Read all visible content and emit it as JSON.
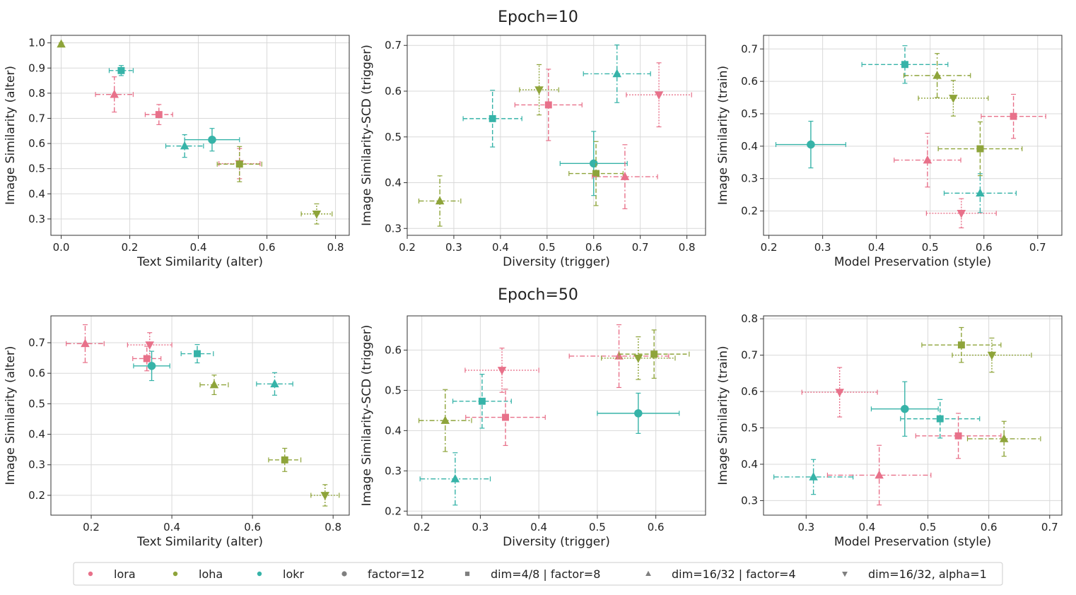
{
  "colors": {
    "lora": "#e8718a",
    "loha": "#8ea43a",
    "lokr": "#36b3a8",
    "neutral": "#7f7f7f"
  },
  "row_titles": [
    "Epoch=10",
    "Epoch=50"
  ],
  "legend": [
    {
      "label": "lora",
      "kind": "color",
      "key": "lora"
    },
    {
      "label": "loha",
      "kind": "color",
      "key": "loha"
    },
    {
      "label": "lokr",
      "kind": "color",
      "key": "lokr"
    },
    {
      "label": "factor=12",
      "kind": "marker",
      "marker": "circle"
    },
    {
      "label": "dim=4/8 | factor=8",
      "kind": "marker",
      "marker": "square"
    },
    {
      "label": "dim=16/32 | factor=4",
      "kind": "marker",
      "marker": "triangle-up"
    },
    {
      "label": "dim=16/32, alpha=1",
      "kind": "marker",
      "marker": "triangle-down"
    }
  ],
  "chart_data": [
    {
      "type": "scatter",
      "row": 0,
      "col": 0,
      "xlabel": "Text Similarity (alter)",
      "ylabel": "Image Similarity (alter)",
      "xlim": [
        -0.03,
        0.84
      ],
      "ylim": [
        0.235,
        1.03
      ],
      "xticks": [
        0.0,
        0.2,
        0.4,
        0.6,
        0.8
      ],
      "yticks": [
        0.3,
        0.4,
        0.5,
        0.6,
        0.7,
        0.8,
        0.9,
        1.0
      ],
      "points": [
        {
          "algo": "loha",
          "marker": "triangle-up",
          "x": 0.0,
          "y": 0.995,
          "xerr": 0.003,
          "yerr": 0.005
        },
        {
          "algo": "lokr",
          "marker": "square",
          "x": 0.175,
          "y": 0.89,
          "xerr": 0.035,
          "yerr": 0.02
        },
        {
          "algo": "lora",
          "marker": "triangle-up",
          "x": 0.155,
          "y": 0.795,
          "xerr": 0.055,
          "yerr": 0.07
        },
        {
          "algo": "lora",
          "marker": "square",
          "x": 0.285,
          "y": 0.715,
          "xerr": 0.04,
          "yerr": 0.04
        },
        {
          "algo": "lokr",
          "marker": "circle",
          "x": 0.44,
          "y": 0.615,
          "xerr": 0.08,
          "yerr": 0.045
        },
        {
          "algo": "lokr",
          "marker": "triangle-up",
          "x": 0.36,
          "y": 0.59,
          "xerr": 0.055,
          "yerr": 0.045
        },
        {
          "algo": "lora",
          "marker": "triangle-down",
          "x": 0.52,
          "y": 0.52,
          "xerr": 0.06,
          "yerr": 0.06
        },
        {
          "algo": "loha",
          "marker": "square",
          "x": 0.52,
          "y": 0.518,
          "xerr": 0.065,
          "yerr": 0.07
        },
        {
          "algo": "loha",
          "marker": "triangle-down",
          "x": 0.745,
          "y": 0.32,
          "xerr": 0.045,
          "yerr": 0.04
        }
      ]
    },
    {
      "type": "scatter",
      "row": 0,
      "col": 1,
      "xlabel": "Diversity (trigger)",
      "ylabel": "Image Similarity-SCD (trigger)",
      "xlim": [
        0.2,
        0.84
      ],
      "ylim": [
        0.285,
        0.722
      ],
      "xticks": [
        0.2,
        0.3,
        0.4,
        0.5,
        0.6,
        0.7,
        0.8
      ],
      "yticks": [
        0.3,
        0.4,
        0.5,
        0.6,
        0.7
      ],
      "points": [
        {
          "algo": "lokr",
          "marker": "triangle-up",
          "x": 0.65,
          "y": 0.638,
          "xerr": 0.072,
          "yerr": 0.063
        },
        {
          "algo": "loha",
          "marker": "triangle-down",
          "x": 0.483,
          "y": 0.603,
          "xerr": 0.042,
          "yerr": 0.055
        },
        {
          "algo": "lora",
          "marker": "triangle-down",
          "x": 0.74,
          "y": 0.592,
          "xerr": 0.07,
          "yerr": 0.07
        },
        {
          "algo": "lora",
          "marker": "square",
          "x": 0.503,
          "y": 0.57,
          "xerr": 0.072,
          "yerr": 0.078
        },
        {
          "algo": "lokr",
          "marker": "square",
          "x": 0.383,
          "y": 0.54,
          "xerr": 0.063,
          "yerr": 0.062
        },
        {
          "algo": "lokr",
          "marker": "circle",
          "x": 0.6,
          "y": 0.442,
          "xerr": 0.072,
          "yerr": 0.07
        },
        {
          "algo": "loha",
          "marker": "square",
          "x": 0.605,
          "y": 0.42,
          "xerr": 0.058,
          "yerr": 0.07
        },
        {
          "algo": "lora",
          "marker": "triangle-up",
          "x": 0.667,
          "y": 0.413,
          "xerr": 0.07,
          "yerr": 0.07
        },
        {
          "algo": "loha",
          "marker": "triangle-up",
          "x": 0.27,
          "y": 0.36,
          "xerr": 0.045,
          "yerr": 0.055
        }
      ]
    },
    {
      "type": "scatter",
      "row": 0,
      "col": 2,
      "xlabel": "Model Preservation (style)",
      "ylabel": "Image Similarity (train)",
      "xlim": [
        0.19,
        0.745
      ],
      "ylim": [
        0.125,
        0.742
      ],
      "xticks": [
        0.2,
        0.3,
        0.4,
        0.5,
        0.6,
        0.7
      ],
      "yticks": [
        0.2,
        0.3,
        0.4,
        0.5,
        0.6,
        0.7
      ],
      "points": [
        {
          "algo": "lokr",
          "marker": "square",
          "x": 0.453,
          "y": 0.652,
          "xerr": 0.08,
          "yerr": 0.058
        },
        {
          "algo": "loha",
          "marker": "triangle-up",
          "x": 0.513,
          "y": 0.618,
          "xerr": 0.062,
          "yerr": 0.068
        },
        {
          "algo": "loha",
          "marker": "triangle-down",
          "x": 0.543,
          "y": 0.548,
          "xerr": 0.065,
          "yerr": 0.055
        },
        {
          "algo": "lora",
          "marker": "square",
          "x": 0.655,
          "y": 0.492,
          "xerr": 0.06,
          "yerr": 0.068
        },
        {
          "algo": "lokr",
          "marker": "circle",
          "x": 0.278,
          "y": 0.405,
          "xerr": 0.065,
          "yerr": 0.072
        },
        {
          "algo": "loha",
          "marker": "square",
          "x": 0.593,
          "y": 0.392,
          "xerr": 0.078,
          "yerr": 0.083
        },
        {
          "algo": "lora",
          "marker": "triangle-up",
          "x": 0.495,
          "y": 0.357,
          "xerr": 0.062,
          "yerr": 0.083
        },
        {
          "algo": "lokr",
          "marker": "triangle-up",
          "x": 0.593,
          "y": 0.255,
          "xerr": 0.067,
          "yerr": 0.06
        },
        {
          "algo": "lora",
          "marker": "triangle-down",
          "x": 0.558,
          "y": 0.193,
          "xerr": 0.065,
          "yerr": 0.045
        }
      ]
    },
    {
      "type": "scatter",
      "row": 1,
      "col": 0,
      "xlabel": "Text Similarity (alter)",
      "ylabel": "Image Similarity (alter)",
      "xlim": [
        0.1,
        0.84
      ],
      "ylim": [
        0.135,
        0.788
      ],
      "xticks": [
        0.2,
        0.4,
        0.6,
        0.8
      ],
      "yticks": [
        0.2,
        0.3,
        0.4,
        0.5,
        0.6,
        0.7
      ],
      "points": [
        {
          "algo": "lora",
          "marker": "triangle-up",
          "x": 0.185,
          "y": 0.697,
          "xerr": 0.047,
          "yerr": 0.062
        },
        {
          "algo": "lora",
          "marker": "triangle-down",
          "x": 0.345,
          "y": 0.693,
          "xerr": 0.055,
          "yerr": 0.04
        },
        {
          "algo": "lora",
          "marker": "square",
          "x": 0.338,
          "y": 0.648,
          "xerr": 0.035,
          "yerr": 0.04
        },
        {
          "algo": "lokr",
          "marker": "square",
          "x": 0.463,
          "y": 0.664,
          "xerr": 0.04,
          "yerr": 0.03
        },
        {
          "algo": "lokr",
          "marker": "circle",
          "x": 0.35,
          "y": 0.624,
          "xerr": 0.045,
          "yerr": 0.048
        },
        {
          "algo": "loha",
          "marker": "triangle-up",
          "x": 0.505,
          "y": 0.562,
          "xerr": 0.035,
          "yerr": 0.032
        },
        {
          "algo": "lokr",
          "marker": "triangle-up",
          "x": 0.655,
          "y": 0.565,
          "xerr": 0.045,
          "yerr": 0.037
        },
        {
          "algo": "loha",
          "marker": "square",
          "x": 0.68,
          "y": 0.316,
          "xerr": 0.04,
          "yerr": 0.038
        },
        {
          "algo": "loha",
          "marker": "triangle-down",
          "x": 0.78,
          "y": 0.2,
          "xerr": 0.035,
          "yerr": 0.035
        }
      ]
    },
    {
      "type": "scatter",
      "row": 1,
      "col": 1,
      "xlabel": "Diversity (trigger)",
      "ylabel": "Image Similarity-SCD (trigger)",
      "xlim": [
        0.175,
        0.685
      ],
      "ylim": [
        0.19,
        0.685
      ],
      "xticks": [
        0.2,
        0.3,
        0.4,
        0.5,
        0.6
      ],
      "yticks": [
        0.2,
        0.3,
        0.4,
        0.5,
        0.6
      ],
      "points": [
        {
          "algo": "lora",
          "marker": "triangle-up",
          "x": 0.537,
          "y": 0.585,
          "xerr": 0.085,
          "yerr": 0.078
        },
        {
          "algo": "loha",
          "marker": "triangle-down",
          "x": 0.57,
          "y": 0.58,
          "xerr": 0.063,
          "yerr": 0.053
        },
        {
          "algo": "loha",
          "marker": "square",
          "x": 0.597,
          "y": 0.59,
          "xerr": 0.06,
          "yerr": 0.06
        },
        {
          "algo": "lora",
          "marker": "triangle-down",
          "x": 0.337,
          "y": 0.55,
          "xerr": 0.063,
          "yerr": 0.055
        },
        {
          "algo": "lokr",
          "marker": "circle",
          "x": 0.57,
          "y": 0.443,
          "xerr": 0.07,
          "yerr": 0.05
        },
        {
          "algo": "lokr",
          "marker": "square",
          "x": 0.303,
          "y": 0.473,
          "xerr": 0.05,
          "yerr": 0.067
        },
        {
          "algo": "lora",
          "marker": "square",
          "x": 0.343,
          "y": 0.433,
          "xerr": 0.068,
          "yerr": 0.07
        },
        {
          "algo": "loha",
          "marker": "triangle-up",
          "x": 0.24,
          "y": 0.425,
          "xerr": 0.045,
          "yerr": 0.077
        },
        {
          "algo": "lokr",
          "marker": "triangle-up",
          "x": 0.257,
          "y": 0.28,
          "xerr": 0.06,
          "yerr": 0.065
        }
      ]
    },
    {
      "type": "scatter",
      "row": 1,
      "col": 2,
      "xlabel": "Model Preservation (style)",
      "ylabel": "Image Similarity (train)",
      "xlim": [
        0.23,
        0.72
      ],
      "ylim": [
        0.26,
        0.808
      ],
      "xticks": [
        0.3,
        0.4,
        0.5,
        0.6,
        0.7
      ],
      "yticks": [
        0.3,
        0.4,
        0.5,
        0.6,
        0.7,
        0.8
      ],
      "points": [
        {
          "algo": "loha",
          "marker": "square",
          "x": 0.555,
          "y": 0.728,
          "xerr": 0.065,
          "yerr": 0.048
        },
        {
          "algo": "loha",
          "marker": "triangle-down",
          "x": 0.605,
          "y": 0.7,
          "xerr": 0.065,
          "yerr": 0.047
        },
        {
          "algo": "lora",
          "marker": "triangle-down",
          "x": 0.355,
          "y": 0.598,
          "xerr": 0.062,
          "yerr": 0.068
        },
        {
          "algo": "lokr",
          "marker": "circle",
          "x": 0.462,
          "y": 0.552,
          "xerr": 0.055,
          "yerr": 0.075
        },
        {
          "algo": "lokr",
          "marker": "square",
          "x": 0.52,
          "y": 0.525,
          "xerr": 0.065,
          "yerr": 0.053
        },
        {
          "algo": "lora",
          "marker": "square",
          "x": 0.55,
          "y": 0.478,
          "xerr": 0.07,
          "yerr": 0.062
        },
        {
          "algo": "loha",
          "marker": "triangle-up",
          "x": 0.625,
          "y": 0.47,
          "xerr": 0.06,
          "yerr": 0.048
        },
        {
          "algo": "lokr",
          "marker": "triangle-up",
          "x": 0.312,
          "y": 0.365,
          "xerr": 0.065,
          "yerr": 0.048
        },
        {
          "algo": "lora",
          "marker": "triangle-up",
          "x": 0.42,
          "y": 0.37,
          "xerr": 0.085,
          "yerr": 0.082
        }
      ]
    }
  ]
}
